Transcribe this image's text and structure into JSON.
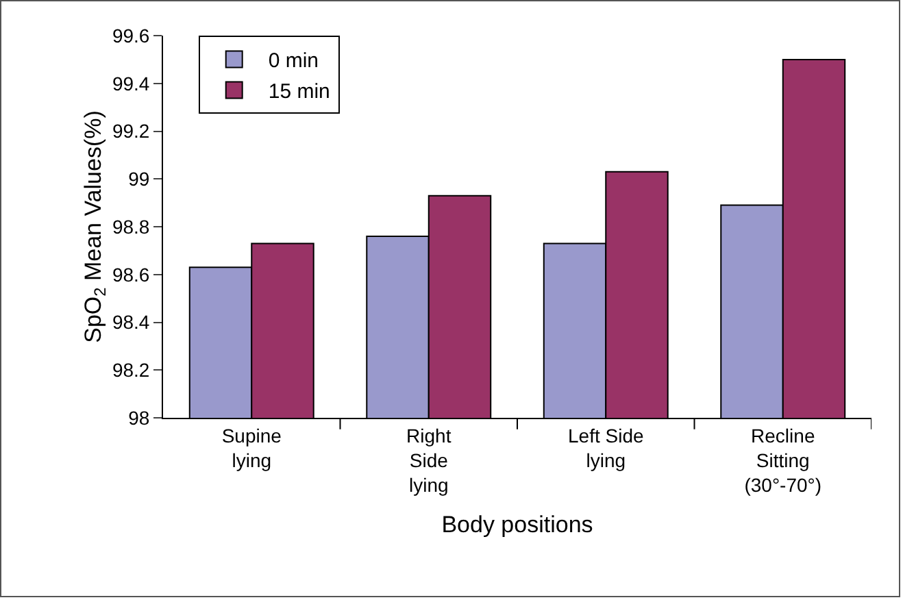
{
  "chart_data": {
    "type": "bar",
    "xlabel": "Body positions",
    "ylabel": "SpO$_{2}$ Mean Values(%)",
    "categories": [
      "Supine\nlying",
      "Right\nSide\nlying",
      "Left Side\nlying",
      "Recline\nSitting\n(30°-70°)"
    ],
    "series": [
      {
        "name": "0 min",
        "color": "#9999cc",
        "values": [
          98.63,
          98.76,
          98.73,
          98.89
        ]
      },
      {
        "name": "15 min",
        "color": "#993366",
        "values": [
          98.73,
          98.93,
          99.03,
          99.5
        ]
      }
    ],
    "ylim": [
      98,
      99.6
    ],
    "yticks": [
      98,
      98.2,
      98.4,
      98.6,
      98.8,
      99,
      99.2,
      99.4,
      99.6
    ],
    "grid": false,
    "legend": "top left"
  }
}
